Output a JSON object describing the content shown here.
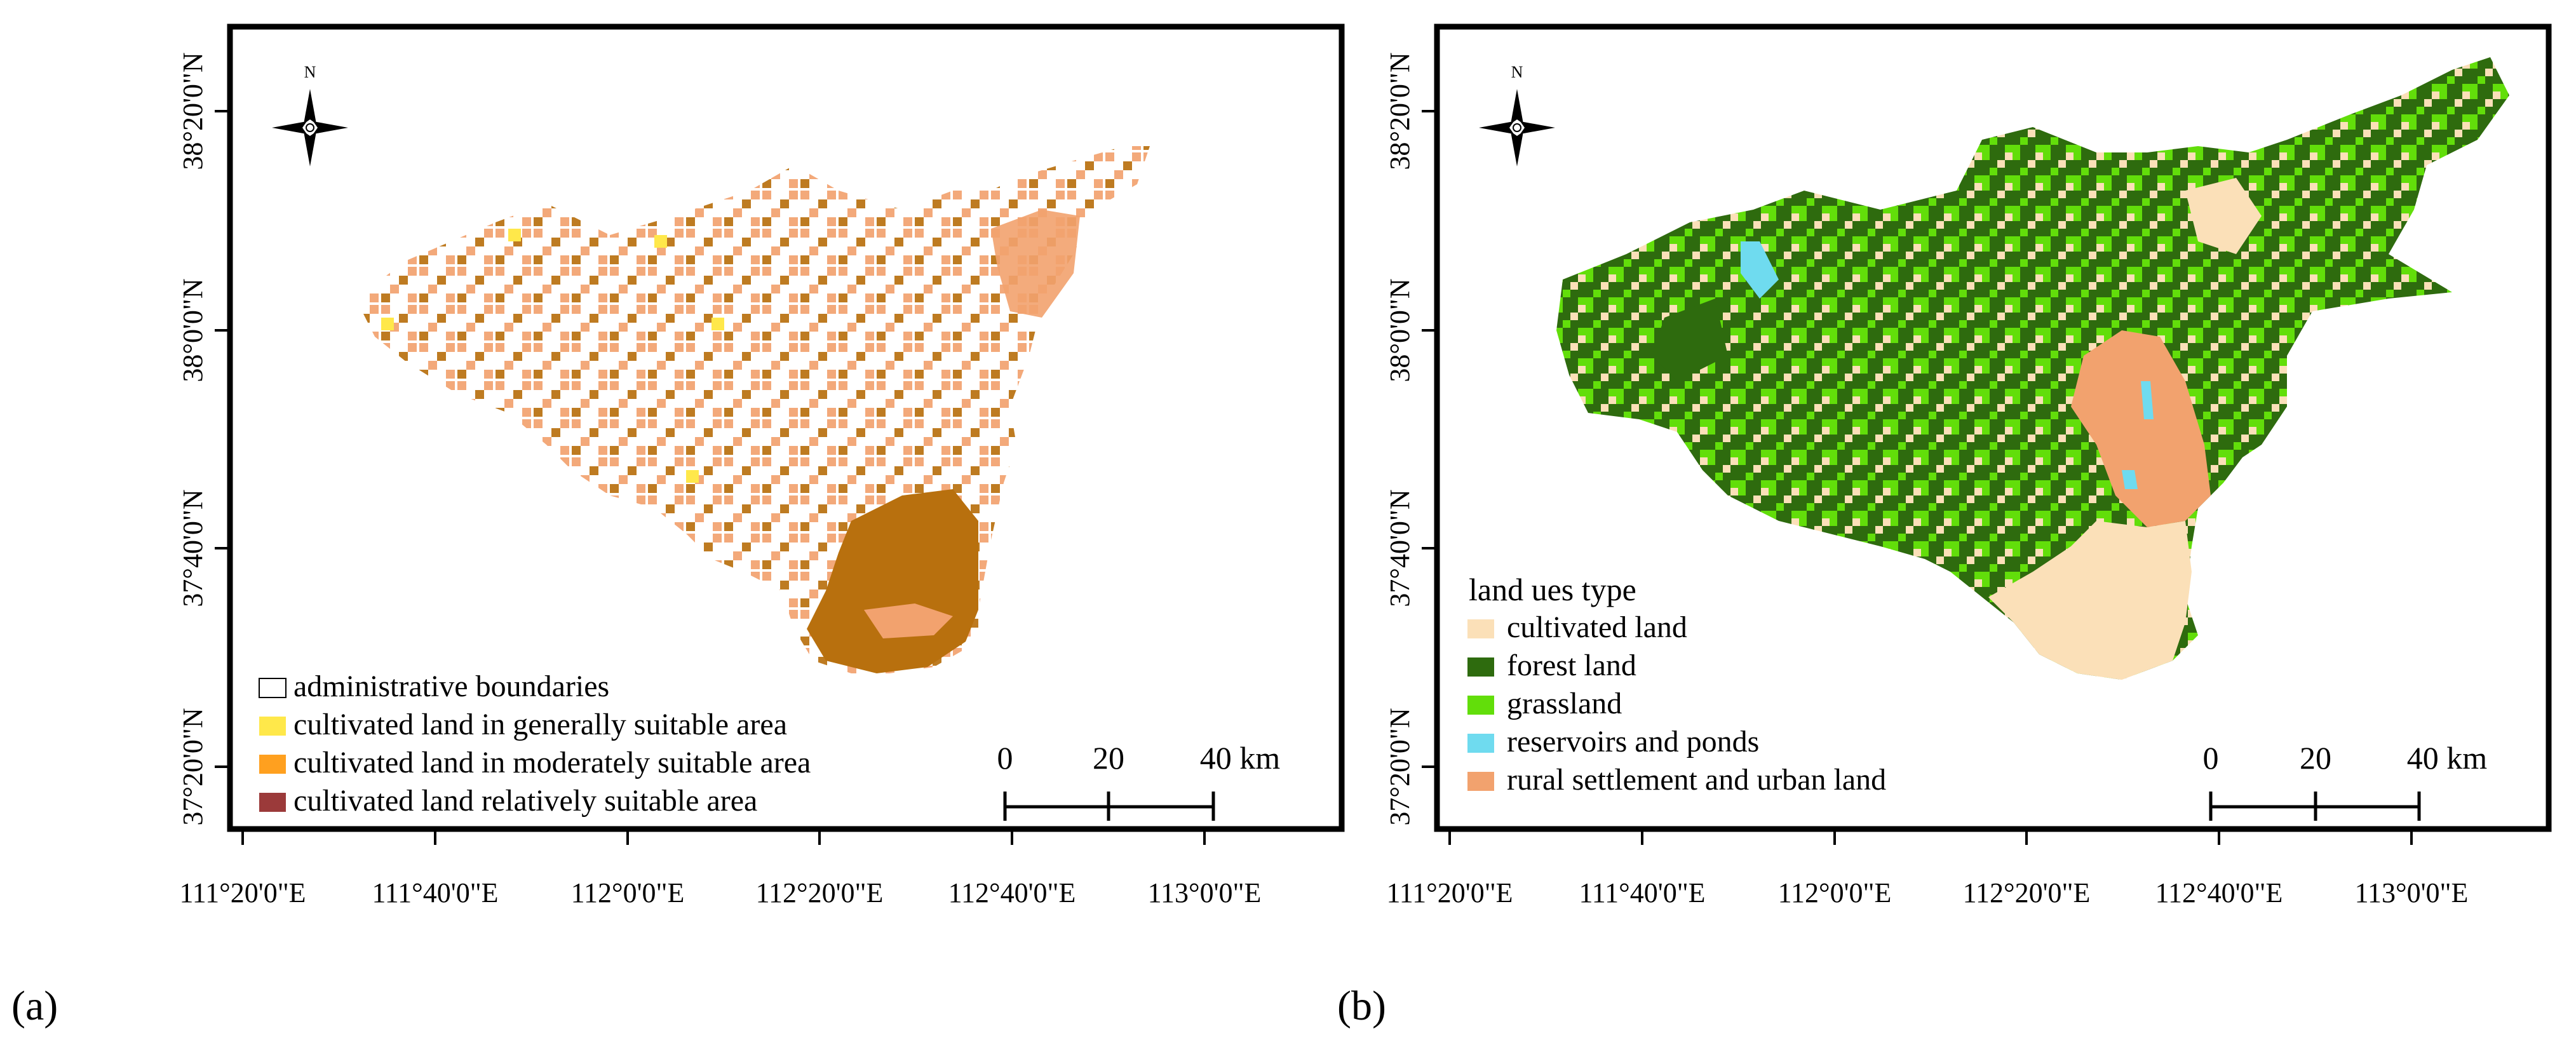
{
  "figure": {
    "panels": [
      {
        "id": "a",
        "tag": "(a)",
        "lon_ticks": [
          "111°20'0\"E",
          "111°40'0\"E",
          "112°0'0\"E",
          "112°20'0\"E",
          "112°40'0\"E",
          "113°0'0\"E"
        ],
        "lat_ticks": [
          "38°20'0\"N",
          "38°0'0\"N",
          "37°40'0\"N",
          "37°20'0\"N"
        ],
        "north": "N",
        "legend_title": "",
        "legend": [
          {
            "label": "administrative boundaries",
            "color": "#ffffff"
          },
          {
            "label": "cultivated land in generally suitable area",
            "color": "#ffe84a"
          },
          {
            "label": "cultivated land in moderately suitable area",
            "color": "#ffa01f"
          },
          {
            "label": "cultivated land relatively suitable area",
            "color": "#9b3a3a"
          }
        ],
        "scale": {
          "labels": [
            "0",
            "20",
            "40 km"
          ]
        },
        "map_colors": {
          "light": "#f2a26e",
          "dark": "#b8700e",
          "yellow": "#ffe84a"
        }
      },
      {
        "id": "b",
        "tag": "(b)",
        "lon_ticks": [
          "111°20'0\"E",
          "111°40'0\"E",
          "112°0'0\"E",
          "112°20'0\"E",
          "112°40'0\"E",
          "113°0'0\"E"
        ],
        "lat_ticks": [
          "38°20'0\"N",
          "38°0'0\"N",
          "37°40'0\"N",
          "37°20'0\"N"
        ],
        "north": "N",
        "legend_title": "land ues type",
        "legend": [
          {
            "label": "cultivated land",
            "color": "#fbe0b8"
          },
          {
            "label": "forest land",
            "color": "#2e6b0e"
          },
          {
            "label": "grassland",
            "color": "#62de0a"
          },
          {
            "label": "reservoirs and ponds",
            "color": "#6fdbef"
          },
          {
            "label": "rural settlement  and urban land",
            "color": "#f2a26e"
          }
        ],
        "scale": {
          "labels": [
            "0",
            "20",
            "40 km"
          ]
        },
        "map_colors": {
          "forest": "#2e6b0e",
          "grass": "#62de0a",
          "cultivated": "#fbe0b8",
          "urban": "#f2a26e",
          "water": "#6fdbef"
        }
      }
    ]
  }
}
